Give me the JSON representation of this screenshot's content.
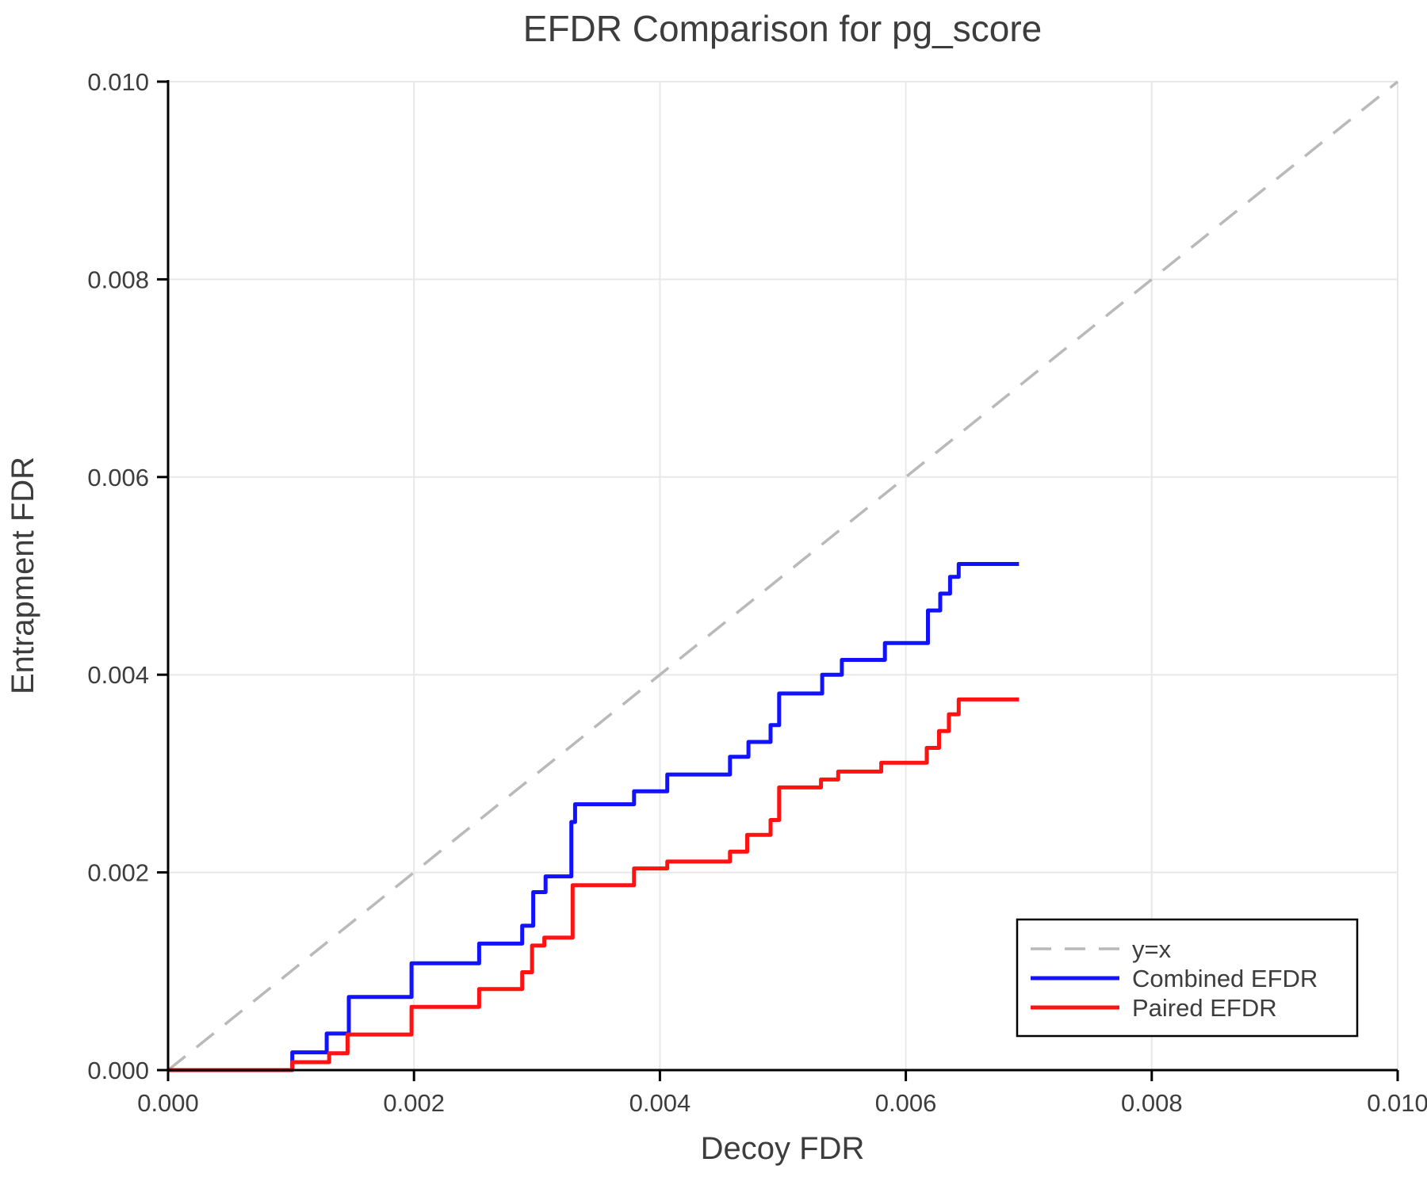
{
  "figure": {
    "background": "#ffffff",
    "text_color": "#3d3d3d",
    "spine_color": "#000000",
    "grid_color": "#e8e8e8"
  },
  "chart_data": {
    "type": "line",
    "title": "EFDR Comparison for pg_score",
    "xlabel": "Decoy FDR",
    "ylabel": "Entrapment FDR",
    "xlim": [
      0.0,
      0.01
    ],
    "ylim": [
      0.0,
      0.01
    ],
    "xticks": [
      0.0,
      0.002,
      0.004,
      0.006,
      0.008,
      0.01
    ],
    "yticks": [
      0.0,
      0.002,
      0.004,
      0.006,
      0.008,
      0.01
    ],
    "grid": true,
    "legend_position": "lower right",
    "series": [
      {
        "name": "y=x",
        "color": "#b9b9b9",
        "line_style": "dashed",
        "points": [
          [
            0.0,
            0.0
          ],
          [
            0.01,
            0.01
          ]
        ]
      },
      {
        "name": "Combined EFDR",
        "color": "#1212ff",
        "line_style": "step",
        "points": [
          [
            0.0,
            0.0
          ],
          [
            0.00101,
            0.00018
          ],
          [
            0.00129,
            0.00037
          ],
          [
            0.00147,
            0.00074
          ],
          [
            0.00198,
            0.00108
          ],
          [
            0.00253,
            0.00128
          ],
          [
            0.00288,
            0.00146
          ],
          [
            0.00297,
            0.0018
          ],
          [
            0.00307,
            0.00196
          ],
          [
            0.00328,
            0.00251
          ],
          [
            0.00331,
            0.00269
          ],
          [
            0.00379,
            0.00282
          ],
          [
            0.00406,
            0.00299
          ],
          [
            0.00457,
            0.00317
          ],
          [
            0.00472,
            0.00332
          ],
          [
            0.0049,
            0.00349
          ],
          [
            0.00497,
            0.00381
          ],
          [
            0.00532,
            0.004
          ],
          [
            0.00548,
            0.00415
          ],
          [
            0.00583,
            0.00432
          ],
          [
            0.00618,
            0.00465
          ],
          [
            0.00628,
            0.00482
          ],
          [
            0.00636,
            0.00499
          ],
          [
            0.00643,
            0.00512
          ],
          [
            0.00692,
            0.00512
          ]
        ]
      },
      {
        "name": "Paired EFDR",
        "color": "#ff1212",
        "line_style": "step",
        "points": [
          [
            0.0,
            0.0
          ],
          [
            0.00101,
            8e-05
          ],
          [
            0.00131,
            0.00017
          ],
          [
            0.00146,
            0.00036
          ],
          [
            0.00198,
            0.00064
          ],
          [
            0.00253,
            0.00082
          ],
          [
            0.00288,
            0.00099
          ],
          [
            0.00296,
            0.00126
          ],
          [
            0.00306,
            0.00134
          ],
          [
            0.00329,
            0.00187
          ],
          [
            0.00379,
            0.00204
          ],
          [
            0.00406,
            0.00211
          ],
          [
            0.00457,
            0.00221
          ],
          [
            0.00471,
            0.00238
          ],
          [
            0.0049,
            0.00253
          ],
          [
            0.00497,
            0.00286
          ],
          [
            0.00531,
            0.00294
          ],
          [
            0.00545,
            0.00302
          ],
          [
            0.0058,
            0.00311
          ],
          [
            0.00617,
            0.00326
          ],
          [
            0.00627,
            0.00343
          ],
          [
            0.00635,
            0.0036
          ],
          [
            0.00643,
            0.00375
          ],
          [
            0.00692,
            0.00375
          ]
        ]
      }
    ]
  }
}
